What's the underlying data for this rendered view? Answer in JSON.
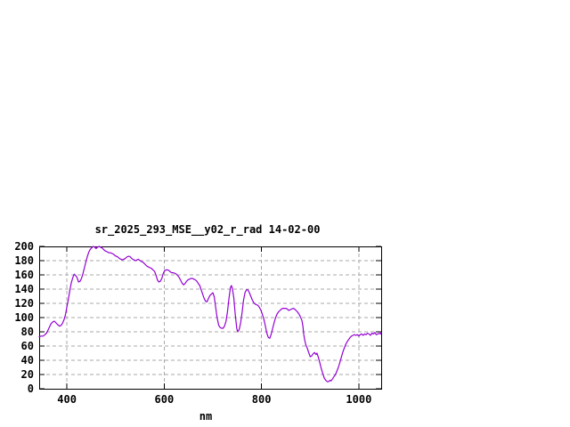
{
  "title": "sr_2025_293_MSE__y02_r_rad 14-02-00",
  "colors": {
    "line": "#9400d3",
    "grid": "#a8a8a8",
    "axis": "#000000",
    "background": "#ffffff"
  },
  "chart_data": {
    "type": "line",
    "title": "sr_2025_293_MSE__y02_r_rad 14-02-00",
    "xlabel": "nm",
    "ylabel": "",
    "x_range": [
      343,
      1046
    ],
    "y_range": [
      0,
      200
    ],
    "x_ticks": [
      400,
      600,
      800,
      1000
    ],
    "y_ticks": [
      0,
      20,
      40,
      60,
      80,
      100,
      120,
      140,
      160,
      180,
      200
    ],
    "grid": true,
    "legend_position": "none",
    "series": [
      {
        "name": "sr_2025_293_MSE__y02_r_rad 14-02-00",
        "color": "#9400d3",
        "points": [
          [
            343,
            73
          ],
          [
            347,
            74
          ],
          [
            351,
            74
          ],
          [
            355,
            76
          ],
          [
            359,
            79
          ],
          [
            363,
            85
          ],
          [
            367,
            91
          ],
          [
            371,
            94
          ],
          [
            374,
            95
          ],
          [
            377,
            93
          ],
          [
            381,
            90
          ],
          [
            385,
            88
          ],
          [
            388,
            89
          ],
          [
            391,
            92
          ],
          [
            394,
            97
          ],
          [
            397,
            104
          ],
          [
            400,
            115
          ],
          [
            403,
            126
          ],
          [
            406,
            138
          ],
          [
            409,
            149
          ],
          [
            412,
            156
          ],
          [
            415,
            161
          ],
          [
            418,
            159
          ],
          [
            421,
            156
          ],
          [
            424,
            150
          ],
          [
            427,
            151
          ],
          [
            430,
            155
          ],
          [
            433,
            162
          ],
          [
            436,
            170
          ],
          [
            439,
            178
          ],
          [
            442,
            186
          ],
          [
            445,
            192
          ],
          [
            448,
            196
          ],
          [
            451,
            198
          ],
          [
            454,
            200
          ],
          [
            457,
            199
          ],
          [
            460,
            197
          ],
          [
            463,
            199
          ],
          [
            466,
            200
          ],
          [
            469,
            199
          ],
          [
            472,
            198
          ],
          [
            475,
            196
          ],
          [
            478,
            194
          ],
          [
            481,
            193
          ],
          [
            484,
            192
          ],
          [
            487,
            191
          ],
          [
            490,
            191
          ],
          [
            493,
            190
          ],
          [
            496,
            189
          ],
          [
            499,
            187
          ],
          [
            502,
            186
          ],
          [
            505,
            185
          ],
          [
            508,
            183
          ],
          [
            511,
            182
          ],
          [
            514,
            181
          ],
          [
            517,
            182
          ],
          [
            520,
            183
          ],
          [
            523,
            185
          ],
          [
            526,
            186
          ],
          [
            529,
            186
          ],
          [
            532,
            184
          ],
          [
            535,
            182
          ],
          [
            538,
            181
          ],
          [
            541,
            180
          ],
          [
            544,
            181
          ],
          [
            547,
            182
          ],
          [
            550,
            180
          ],
          [
            553,
            179
          ],
          [
            556,
            178
          ],
          [
            559,
            176
          ],
          [
            562,
            174
          ],
          [
            565,
            172
          ],
          [
            568,
            171
          ],
          [
            571,
            170
          ],
          [
            574,
            169
          ],
          [
            577,
            167
          ],
          [
            580,
            165
          ],
          [
            583,
            160
          ],
          [
            586,
            153
          ],
          [
            589,
            150
          ],
          [
            592,
            151
          ],
          [
            595,
            155
          ],
          [
            598,
            162
          ],
          [
            601,
            166
          ],
          [
            604,
            167
          ],
          [
            607,
            167
          ],
          [
            610,
            166
          ],
          [
            613,
            164
          ],
          [
            616,
            163
          ],
          [
            619,
            163
          ],
          [
            622,
            162
          ],
          [
            625,
            161
          ],
          [
            628,
            159
          ],
          [
            631,
            156
          ],
          [
            634,
            152
          ],
          [
            637,
            148
          ],
          [
            640,
            146
          ],
          [
            643,
            148
          ],
          [
            646,
            151
          ],
          [
            649,
            153
          ],
          [
            652,
            154
          ],
          [
            655,
            155
          ],
          [
            658,
            155
          ],
          [
            661,
            154
          ],
          [
            664,
            153
          ],
          [
            667,
            151
          ],
          [
            670,
            148
          ],
          [
            673,
            145
          ],
          [
            676,
            139
          ],
          [
            679,
            133
          ],
          [
            682,
            127
          ],
          [
            685,
            123
          ],
          [
            688,
            122
          ],
          [
            691,
            127
          ],
          [
            694,
            131
          ],
          [
            697,
            133
          ],
          [
            700,
            135
          ],
          [
            703,
            129
          ],
          [
            706,
            113
          ],
          [
            709,
            99
          ],
          [
            712,
            89
          ],
          [
            715,
            86
          ],
          [
            718,
            85
          ],
          [
            721,
            85
          ],
          [
            724,
            88
          ],
          [
            727,
            95
          ],
          [
            730,
            108
          ],
          [
            733,
            126
          ],
          [
            736,
            142
          ],
          [
            738,
            145
          ],
          [
            740,
            141
          ],
          [
            743,
            128
          ],
          [
            746,
            105
          ],
          [
            749,
            85
          ],
          [
            751,
            80
          ],
          [
            754,
            83
          ],
          [
            757,
            92
          ],
          [
            760,
            107
          ],
          [
            763,
            124
          ],
          [
            766,
            135
          ],
          [
            769,
            139
          ],
          [
            772,
            139
          ],
          [
            775,
            135
          ],
          [
            778,
            130
          ],
          [
            781,
            125
          ],
          [
            784,
            121
          ],
          [
            787,
            119
          ],
          [
            790,
            118
          ],
          [
            793,
            117
          ],
          [
            796,
            114
          ],
          [
            799,
            110
          ],
          [
            802,
            104
          ],
          [
            805,
            97
          ],
          [
            808,
            88
          ],
          [
            811,
            78
          ],
          [
            814,
            72
          ],
          [
            817,
            71
          ],
          [
            820,
            77
          ],
          [
            823,
            85
          ],
          [
            826,
            93
          ],
          [
            829,
            100
          ],
          [
            832,
            105
          ],
          [
            835,
            108
          ],
          [
            838,
            110
          ],
          [
            841,
            112
          ],
          [
            844,
            113
          ],
          [
            847,
            113
          ],
          [
            850,
            113
          ],
          [
            853,
            112
          ],
          [
            856,
            110
          ],
          [
            859,
            111
          ],
          [
            862,
            112
          ],
          [
            865,
            113
          ],
          [
            868,
            112
          ],
          [
            871,
            110
          ],
          [
            874,
            108
          ],
          [
            877,
            105
          ],
          [
            880,
            101
          ],
          [
            883,
            96
          ],
          [
            885,
            88
          ],
          [
            887,
            76
          ],
          [
            889,
            68
          ],
          [
            891,
            62
          ],
          [
            894,
            57
          ],
          [
            897,
            51
          ],
          [
            900,
            45
          ],
          [
            903,
            46
          ],
          [
            906,
            49
          ],
          [
            909,
            51
          ],
          [
            912,
            48
          ],
          [
            914,
            50
          ],
          [
            917,
            44
          ],
          [
            920,
            36
          ],
          [
            923,
            28
          ],
          [
            926,
            21
          ],
          [
            929,
            15
          ],
          [
            932,
            12
          ],
          [
            935,
            10
          ],
          [
            938,
            10
          ],
          [
            941,
            12
          ],
          [
            943,
            11
          ],
          [
            946,
            14
          ],
          [
            949,
            17
          ],
          [
            952,
            20
          ],
          [
            955,
            25
          ],
          [
            958,
            30
          ],
          [
            961,
            37
          ],
          [
            964,
            44
          ],
          [
            967,
            51
          ],
          [
            970,
            57
          ],
          [
            973,
            62
          ],
          [
            976,
            66
          ],
          [
            979,
            69
          ],
          [
            982,
            72
          ],
          [
            985,
            74
          ],
          [
            988,
            75
          ],
          [
            991,
            76
          ],
          [
            994,
            75
          ],
          [
            997,
            76
          ],
          [
            1000,
            74
          ],
          [
            1003,
            76
          ],
          [
            1006,
            77
          ],
          [
            1009,
            75
          ],
          [
            1012,
            77
          ],
          [
            1015,
            76
          ],
          [
            1018,
            78
          ],
          [
            1021,
            77
          ],
          [
            1024,
            75
          ],
          [
            1027,
            78
          ],
          [
            1030,
            77
          ],
          [
            1033,
            79
          ],
          [
            1036,
            76
          ],
          [
            1039,
            77
          ],
          [
            1042,
            78
          ],
          [
            1045,
            77
          ],
          [
            1046,
            79
          ]
        ]
      }
    ]
  }
}
